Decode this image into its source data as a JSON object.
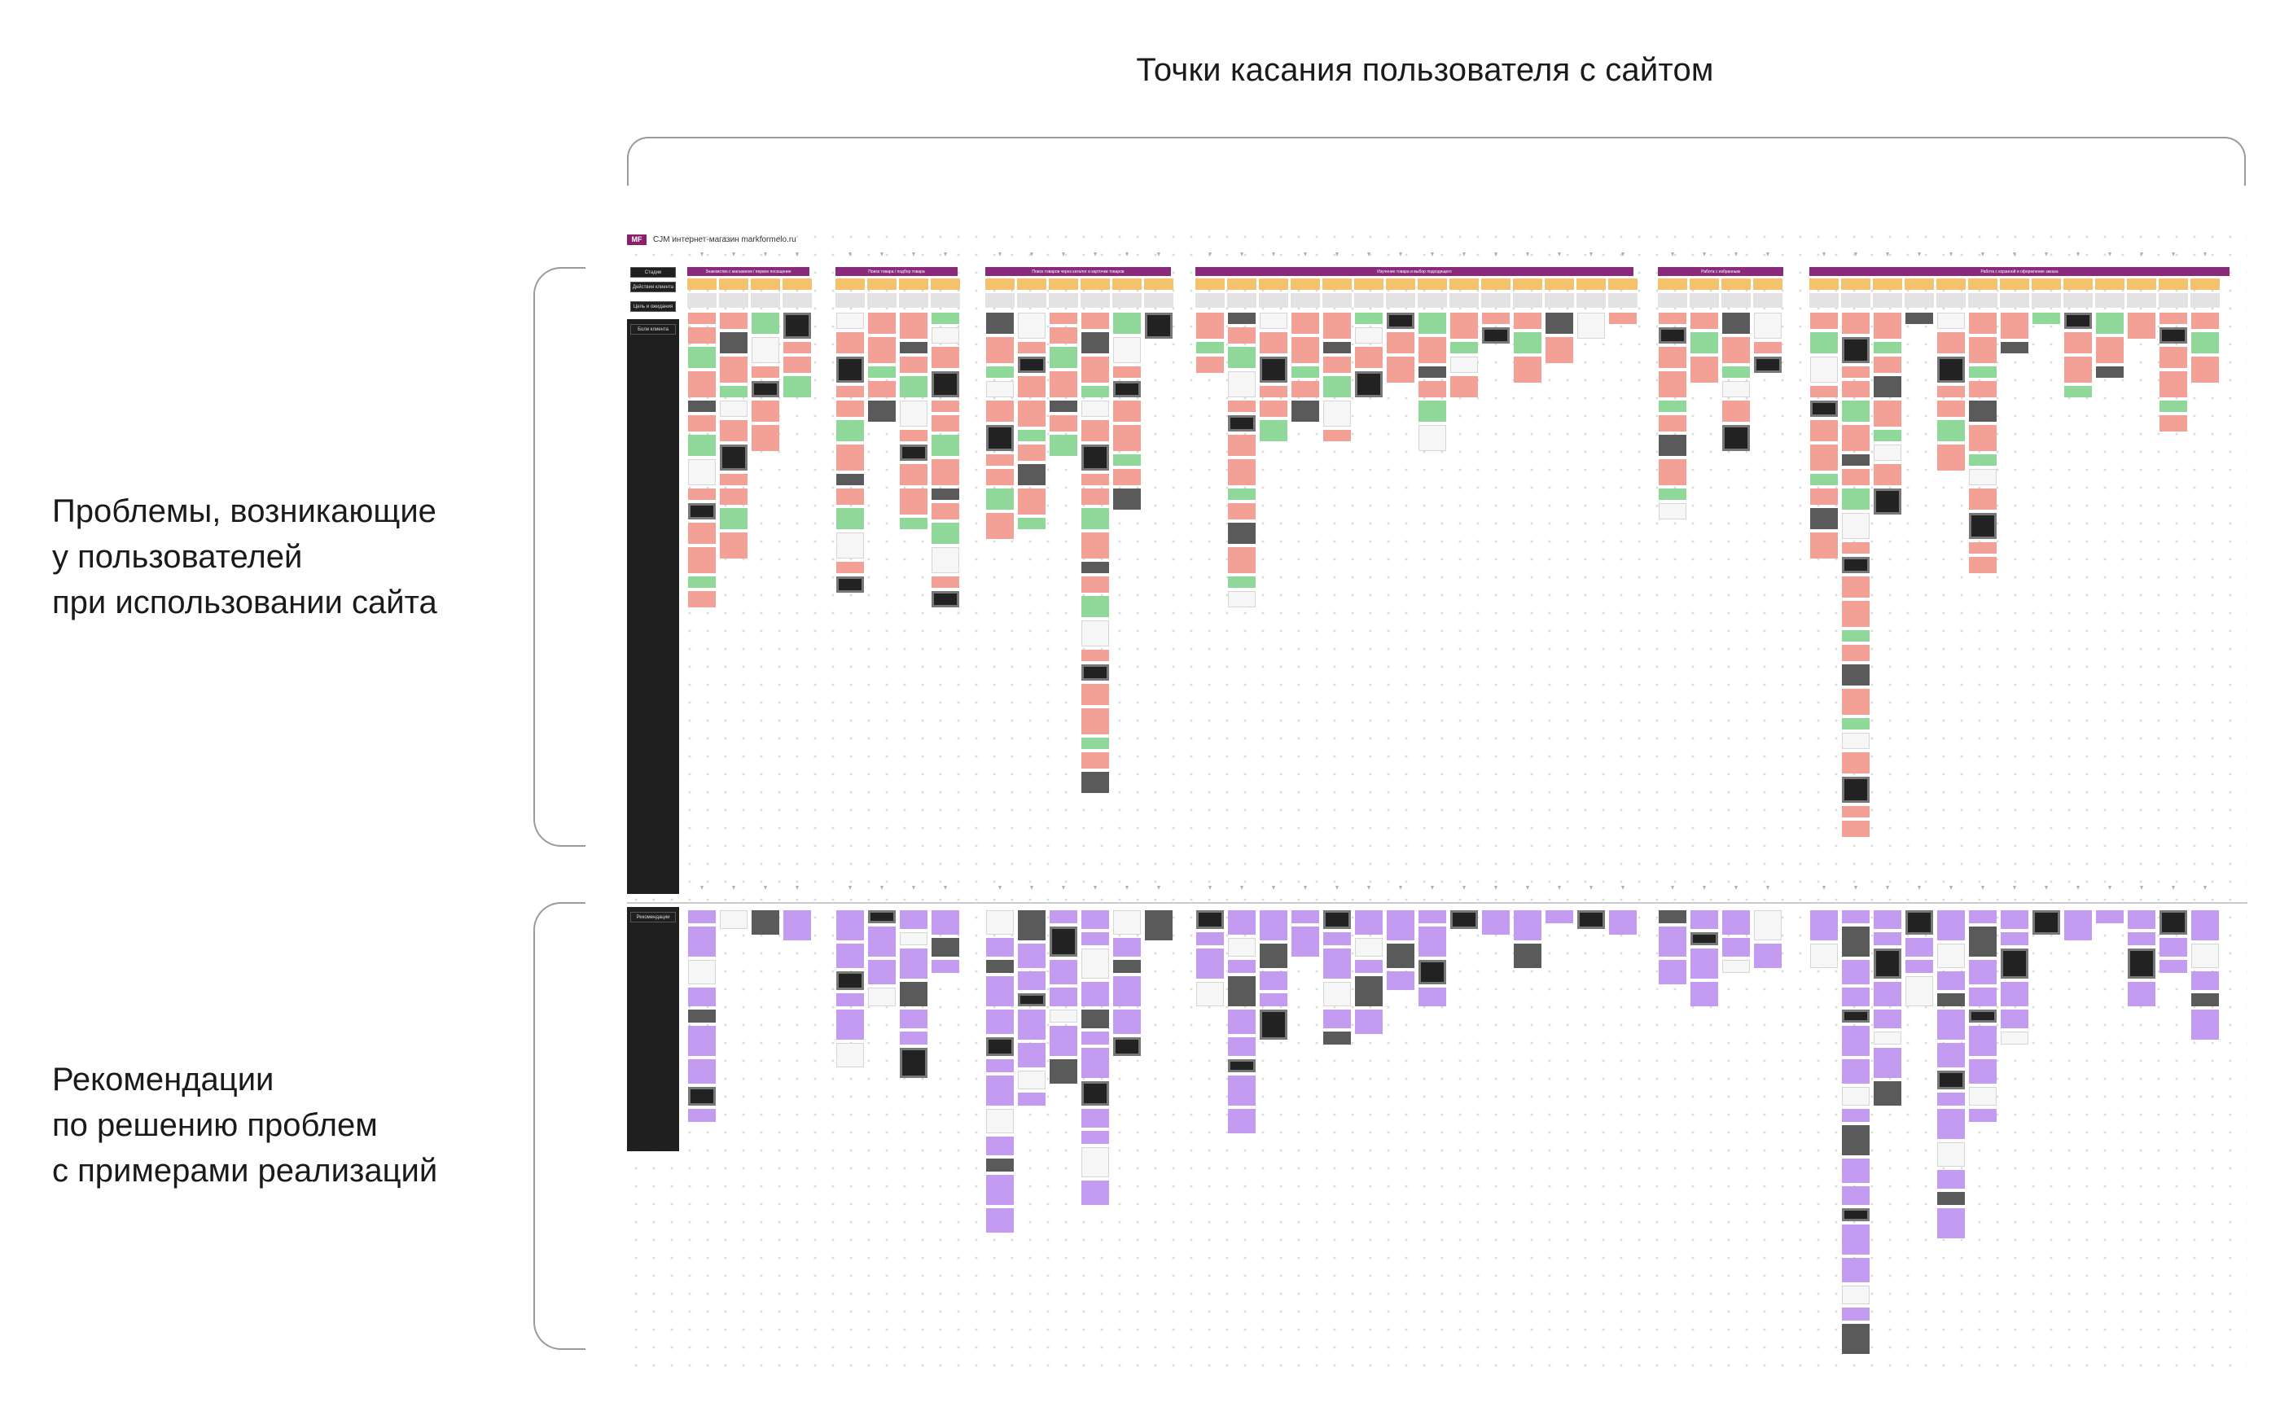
{
  "header": {
    "touchpoints_label": "Точки касания пользователя с сайтом"
  },
  "side_labels": {
    "problems": [
      "Проблемы, возникающие",
      "у пользователей",
      "при использовании сайта"
    ],
    "recommendations": [
      "Рекомендации",
      "по решению проблем",
      "с примерами реализаций"
    ]
  },
  "board": {
    "logo_text": "MF",
    "title": "CJM интернет-магазин markformelo.ru",
    "lanes": [
      "Стадии",
      "Действия клиента",
      "Цель и ожидания",
      "Боли клиента",
      "Рекомендации"
    ],
    "stages": [
      "Знакомство с магазином / первое посещение",
      "Поиск товара / подбор товара",
      "Поиск товаров через каталог и карточки товаров",
      "Изучение товара и выбор подходящего",
      "Работа с избранным",
      "Работа с корзиной и оформление заказа"
    ]
  },
  "colors": {
    "stage": "#8a2a7a",
    "action": "#f4c26c",
    "expectation": "#e3e3e3",
    "pain": "#f3a196",
    "positive": "#8fd89a",
    "recommendation": "#c39cf2",
    "lane_background": "#1f1f1f"
  }
}
